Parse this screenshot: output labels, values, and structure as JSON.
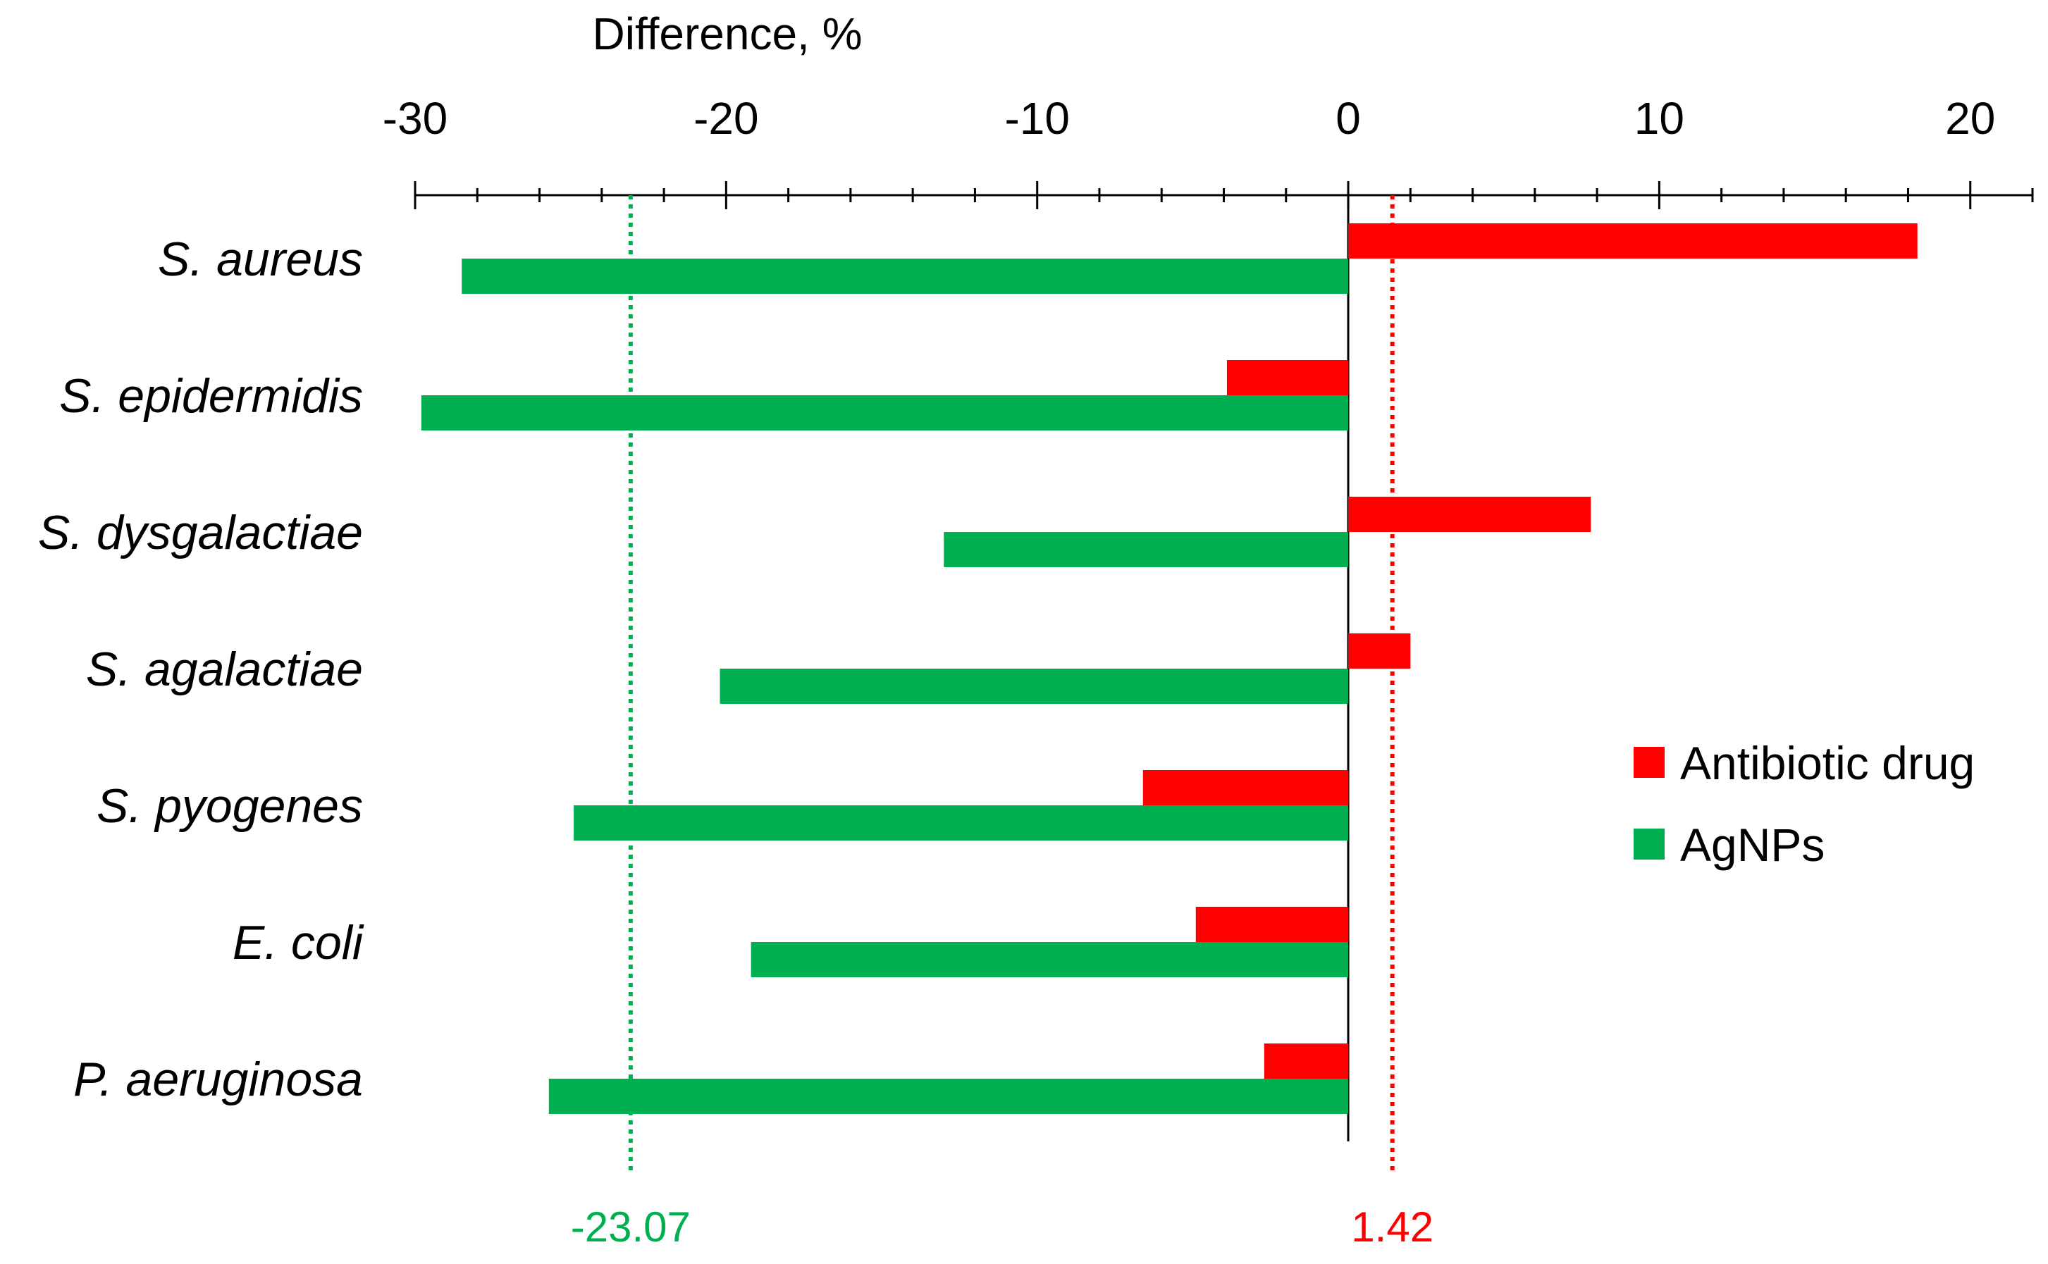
{
  "chart_data": {
    "type": "bar",
    "orientation": "horizontal",
    "title": "",
    "xlabel": "Difference, %",
    "ylabel": "",
    "xlim": [
      -30,
      22
    ],
    "xticks": [
      -30,
      -20,
      -10,
      0,
      10,
      20
    ],
    "tick_labels": [
      "-30",
      "-20",
      "-10",
      "0",
      "10",
      "20"
    ],
    "categories": [
      "S. aureus",
      "S. epidermidis",
      "S. dysgalactiae",
      "S. agalactiae",
      "S. pyogenes",
      "E. coli",
      "P. aeruginosa"
    ],
    "series": [
      {
        "name": "Antibiotic drug",
        "color": "#ff0000",
        "values": [
          18.3,
          -3.9,
          7.8,
          2.0,
          -6.6,
          -4.9,
          -2.7
        ]
      },
      {
        "name": "AgNPs",
        "color": "#00b050",
        "values": [
          -28.5,
          -29.8,
          -13.0,
          -20.2,
          -24.9,
          -19.2,
          -25.7
        ]
      }
    ],
    "reference_lines": [
      {
        "value": -23.07,
        "label": "-23.07",
        "color": "#00b050",
        "series": "AgNPs"
      },
      {
        "value": 1.42,
        "label": "1.42",
        "color": "#ff0000",
        "series": "Antibiotic drug"
      }
    ],
    "legend": {
      "position": "right"
    },
    "grid": false
  }
}
